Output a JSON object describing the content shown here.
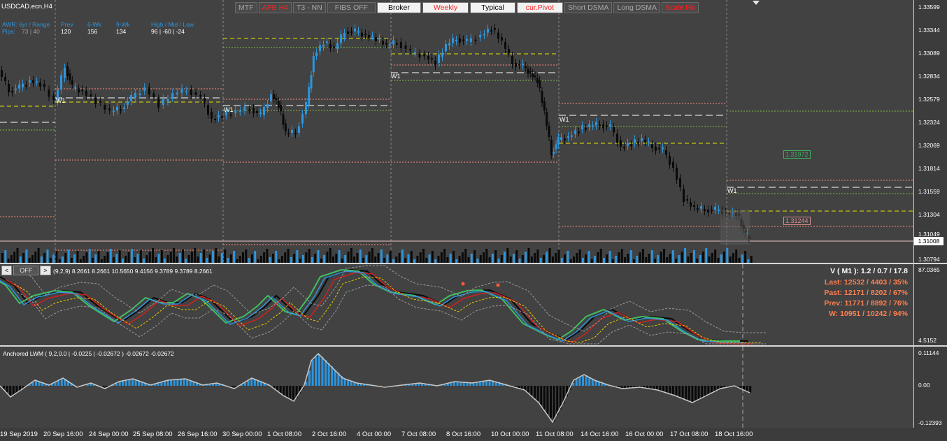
{
  "symbol": "USDCAD.ecn,H4",
  "toolbar": [
    "MTF",
    "APB H4",
    "T3 - NN",
    "FIBS OFF",
    "Broker",
    "Weekly",
    "Typical",
    "cur.Pivot",
    "Short DSMA",
    "Long DSMA",
    "Scale Fix"
  ],
  "info": {
    "awr_label": "AWR: 6yr / Range",
    "pips_label": "Pips:",
    "pips_vals": "73 | 40",
    "prev_label": "Prev",
    "prev_val": "120",
    "sixwk_label": "6-Wk",
    "sixwk_val": "156",
    "ninewk_label": "9-Wk",
    "ninewk_val": "134",
    "hml_label": "High / Mid / Low",
    "hml_val": "96  |  -60  |  -24"
  },
  "price_axis": [
    "1.33599",
    "1.33344",
    "1.33089",
    "1.32834",
    "1.32579",
    "1.32324",
    "1.32069",
    "1.31814",
    "1.31559",
    "1.31304",
    "1.31049",
    "1.30794"
  ],
  "current_price": "1.31008",
  "price_labels": {
    "green": "1.31972",
    "pink": "1.31244"
  },
  "w1_label": "W1",
  "osc": {
    "off_label": "OFF",
    "prev_btn": "<",
    "next_btn": ">",
    "title": "(9,2,9) 8.2661 8.2661 10.5650 9.4156 9.3789 9.3789 8.2661",
    "axis_top": "87.0365",
    "axis_bottom": "4.5152",
    "stats": [
      {
        "text": "V ( M1 ): 1.2 / 0.7 / 17.8",
        "color": "#ffffff"
      },
      {
        "text": "Last: 12532 / 4403 / 35%",
        "color": "#ff7f50"
      },
      {
        "text": "Past: 12171 / 8202 / 67%",
        "color": "#ff7f50"
      },
      {
        "text": "Prev: 11771 / 8892 / 76%",
        "color": "#ff7f50"
      },
      {
        "text": "W: 10951 / 10242 / 94%",
        "color": "#ff7f50"
      }
    ]
  },
  "lwm": {
    "title": "Anchored LWM ( 9,2,0.0 | -0.0225 | -0.02672 ) -0.02672 -0.02672",
    "axis_top": "0.11144",
    "axis_mid": "0.00",
    "axis_bottom": "-0.12393"
  },
  "time_axis": [
    "19 Sep 2019",
    "20 Sep 16:00",
    "24 Sep 00:00",
    "25 Sep 08:00",
    "26 Sep 16:00",
    "30 Sep 00:00",
    "1 Oct 08:00",
    "2 Oct 16:00",
    "4 Oct 00:00",
    "7 Oct 08:00",
    "8 Oct 16:00",
    "10 Oct 00:00",
    "11 Oct 08:00",
    "14 Oct 16:00",
    "16 Oct 00:00",
    "17 Oct 08:00",
    "18 Oct 16:00"
  ],
  "colors": {
    "bull": "#2d95dd",
    "bear": "#0a0a0a",
    "bg": "#424242",
    "yellow": "#e6e600",
    "salmon": "#ff8c7a",
    "green_dash": "#7fbf3f"
  }
}
